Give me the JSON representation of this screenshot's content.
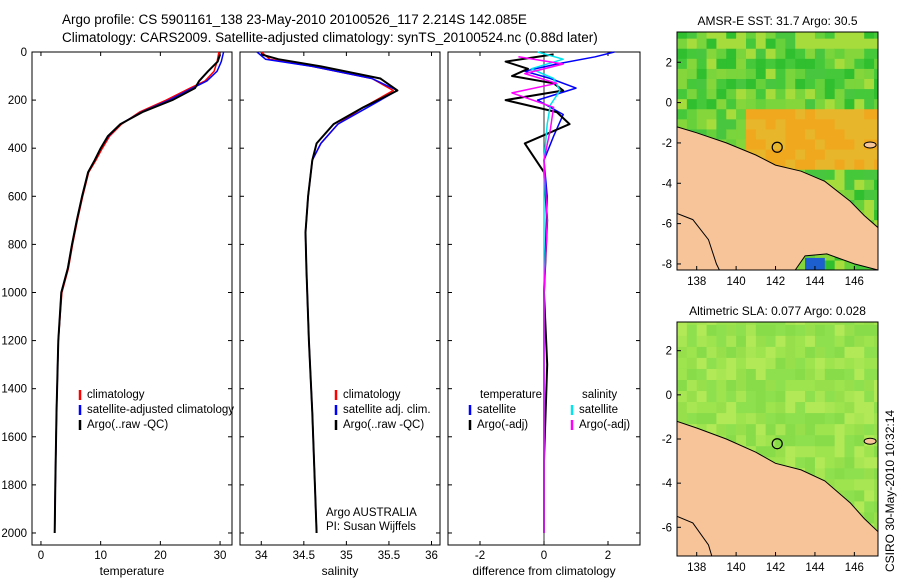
{
  "header": {
    "line1": "Argo profile: CS 5901161_138 23-May-2010 20100526_117 2.214S 142.085E",
    "line2": "Climatology: CARS2009. Satellite-adjusted climatology: synTS_20100524.nc (0.88d later)"
  },
  "footer_vertical": "CSIRO 30-May-2010 10:32:14",
  "colors": {
    "climatology": "#ff0000",
    "satellite": "#0000ff",
    "argo": "#000000",
    "salinity_satellite": "#00e5ee",
    "salinity_argo": "#ff00ff",
    "land": "#f7c49a"
  },
  "chart_data": [
    {
      "type": "line",
      "xlabel": "temperature",
      "ylim": [
        0,
        2050
      ],
      "y_reversed": true,
      "xlim": [
        -1.5,
        32
      ],
      "xticks": [
        0,
        10,
        20,
        30
      ],
      "yticks": [
        0,
        200,
        400,
        600,
        800,
        1000,
        1200,
        1400,
        1600,
        1800,
        2000
      ],
      "legend": {
        "position": "lower-right",
        "entries": [
          "climatology",
          "satellite-adjusted climatology",
          "Argo(..raw -QC)"
        ]
      },
      "series": [
        {
          "name": "climatology",
          "x": [
            29.8,
            29.5,
            29.0,
            27.5,
            25.0,
            21.0,
            16.5,
            13.5,
            11.5,
            10.3,
            9.2,
            8.0,
            7.0,
            6.1,
            5.3,
            4.6,
            3.5,
            2.9,
            2.6,
            2.4,
            2.3
          ],
          "y": [
            0,
            40,
            80,
            120,
            150,
            200,
            250,
            300,
            350,
            400,
            450,
            500,
            600,
            700,
            800,
            900,
            1000,
            1200,
            1500,
            1800,
            2000
          ]
        },
        {
          "name": "satellite-adjusted climatology",
          "x": [
            30.6,
            30.2,
            29.5,
            27.8,
            25.4,
            21.5,
            16.8,
            13.3,
            11.3,
            10.0,
            9.0,
            7.9,
            6.9,
            6.0,
            5.2,
            4.5,
            3.4,
            2.9,
            2.6,
            2.4,
            2.3
          ],
          "y": [
            0,
            40,
            80,
            120,
            150,
            200,
            250,
            300,
            350,
            400,
            450,
            500,
            600,
            700,
            800,
            900,
            1000,
            1200,
            1500,
            1800,
            2000
          ]
        },
        {
          "name": "Argo(..raw -QC)",
          "x": [
            30.0,
            29.6,
            28.0,
            26.5,
            25.8,
            22.0,
            17.0,
            13.3,
            11.2,
            10.0,
            9.0,
            7.9,
            6.9,
            6.0,
            5.2,
            4.5,
            3.4,
            2.9,
            2.6,
            2.4,
            2.3
          ],
          "y": [
            10,
            40,
            80,
            120,
            150,
            200,
            250,
            300,
            350,
            400,
            450,
            500,
            600,
            700,
            800,
            900,
            1000,
            1200,
            1500,
            1800,
            2000
          ]
        }
      ]
    },
    {
      "type": "line",
      "xlabel": "salinity",
      "ylim": [
        0,
        2050
      ],
      "y_reversed": true,
      "xlim": [
        33.75,
        36.1
      ],
      "xticks": [
        34,
        34.5,
        35,
        35.5,
        36
      ],
      "yticks": [
        0,
        200,
        400,
        600,
        800,
        1000,
        1200,
        1400,
        1600,
        1800,
        2000
      ],
      "legend": {
        "position": "lower-right",
        "entries": [
          "climatology",
          "satellite adj. clim.",
          "Argo(..raw -QC)"
        ]
      },
      "annotation": [
        "Argo AUSTRALIA",
        "PI: Susan Wijffels"
      ],
      "series": [
        {
          "name": "climatology",
          "x": [
            34.0,
            34.1,
            34.6,
            35.3,
            35.55,
            35.2,
            34.9,
            34.7,
            34.6,
            34.55,
            34.52,
            34.53,
            34.56,
            34.6,
            34.63,
            34.65
          ],
          "y": [
            0,
            30,
            60,
            110,
            160,
            230,
            300,
            380,
            450,
            600,
            750,
            900,
            1200,
            1500,
            1800,
            2000
          ]
        },
        {
          "name": "satellite adj. clim.",
          "x": [
            33.95,
            34.05,
            34.6,
            35.3,
            35.6,
            35.25,
            34.9,
            34.7,
            34.6,
            34.55,
            34.52,
            34.53,
            34.56,
            34.6,
            34.63,
            34.65
          ],
          "y": [
            0,
            30,
            60,
            110,
            160,
            230,
            300,
            380,
            450,
            600,
            750,
            900,
            1200,
            1500,
            1800,
            2000
          ]
        },
        {
          "name": "Argo(..raw -QC)",
          "x": [
            34.0,
            34.2,
            34.7,
            35.4,
            35.6,
            35.2,
            34.85,
            34.65,
            34.6,
            34.55,
            34.52,
            34.53,
            34.56,
            34.6,
            34.63,
            34.65
          ],
          "y": [
            10,
            30,
            60,
            110,
            160,
            230,
            300,
            380,
            450,
            600,
            750,
            900,
            1200,
            1500,
            1800,
            2000
          ]
        }
      ]
    },
    {
      "type": "line",
      "xlabel": "difference from climatology",
      "ylim": [
        0,
        2050
      ],
      "y_reversed": true,
      "xlim": [
        -3,
        3
      ],
      "xticks": [
        -2,
        0,
        2
      ],
      "yticks": [
        0,
        200,
        400,
        600,
        800,
        1000,
        1200,
        1400,
        1600,
        1800,
        2000
      ],
      "legend": {
        "position": "lower-center",
        "groups": [
          {
            "title": "temperature",
            "entries": [
              "satellite",
              "Argo(-adj)"
            ]
          },
          {
            "title": "salinity",
            "entries": [
              "satellite",
              "Argo(-adj)"
            ]
          }
        ]
      },
      "series": [
        {
          "name": "temperature satellite",
          "x": [
            2.2,
            1.6,
            0.4,
            -0.6,
            0.2,
            1.0,
            -0.2,
            0.6,
            0.3,
            0.0,
            0.1,
            0.05,
            0.0,
            0.0,
            0.0,
            0.0
          ],
          "y": [
            0,
            20,
            50,
            80,
            110,
            150,
            200,
            260,
            350,
            450,
            600,
            800,
            1000,
            1400,
            1700,
            2000
          ]
        },
        {
          "name": "temperature Argo(-adj)",
          "x": [
            0.3,
            -1.2,
            -0.5,
            -1.0,
            0.3,
            0.6,
            -1.2,
            0.4,
            0.8,
            -0.6,
            0.0,
            0.1,
            0.0,
            0.1,
            0.0,
            0.0
          ],
          "y": [
            10,
            40,
            70,
            100,
            130,
            160,
            200,
            250,
            300,
            380,
            500,
            700,
            1000,
            1300,
            1700,
            2000
          ]
        },
        {
          "name": "salinity satellite",
          "x": [
            -0.2,
            0.6,
            -0.4,
            0.3,
            0.5,
            0.2,
            0.1,
            0.0,
            0.0,
            0.0,
            0.0,
            0.0
          ],
          "y": [
            0,
            30,
            70,
            110,
            160,
            220,
            300,
            450,
            700,
            1000,
            1500,
            2000
          ]
        },
        {
          "name": "salinity Argo(-adj)",
          "x": [
            -0.8,
            0.6,
            -0.6,
            0.4,
            -1.0,
            0.3,
            0.2,
            0.0,
            0.1,
            0.0,
            0.0,
            0.0
          ],
          "y": [
            20,
            50,
            90,
            130,
            170,
            230,
            320,
            450,
            700,
            1000,
            1500,
            2000
          ]
        }
      ]
    }
  ],
  "maps": [
    {
      "title": "AMSR-E SST: 31.7 Argo: 30.5",
      "xlim": [
        137,
        147.2
      ],
      "ylim": [
        -8.3,
        3.5
      ],
      "xticks": [
        138,
        140,
        142,
        144,
        146
      ],
      "yticks": [
        2,
        0,
        -2,
        -4,
        -6,
        -8
      ],
      "profile_marker": {
        "lon": 142.085,
        "lat": -2.214
      }
    },
    {
      "title": "Altimetric SLA: 0.077 Argo: 0.028",
      "xlim": [
        137,
        147.2
      ],
      "ylim": [
        -7.3,
        3.3
      ],
      "xticks": [
        138,
        140,
        142,
        144,
        146
      ],
      "yticks": [
        2,
        0,
        -2,
        -4,
        -6
      ],
      "profile_marker": {
        "lon": 142.085,
        "lat": -2.214
      }
    }
  ]
}
